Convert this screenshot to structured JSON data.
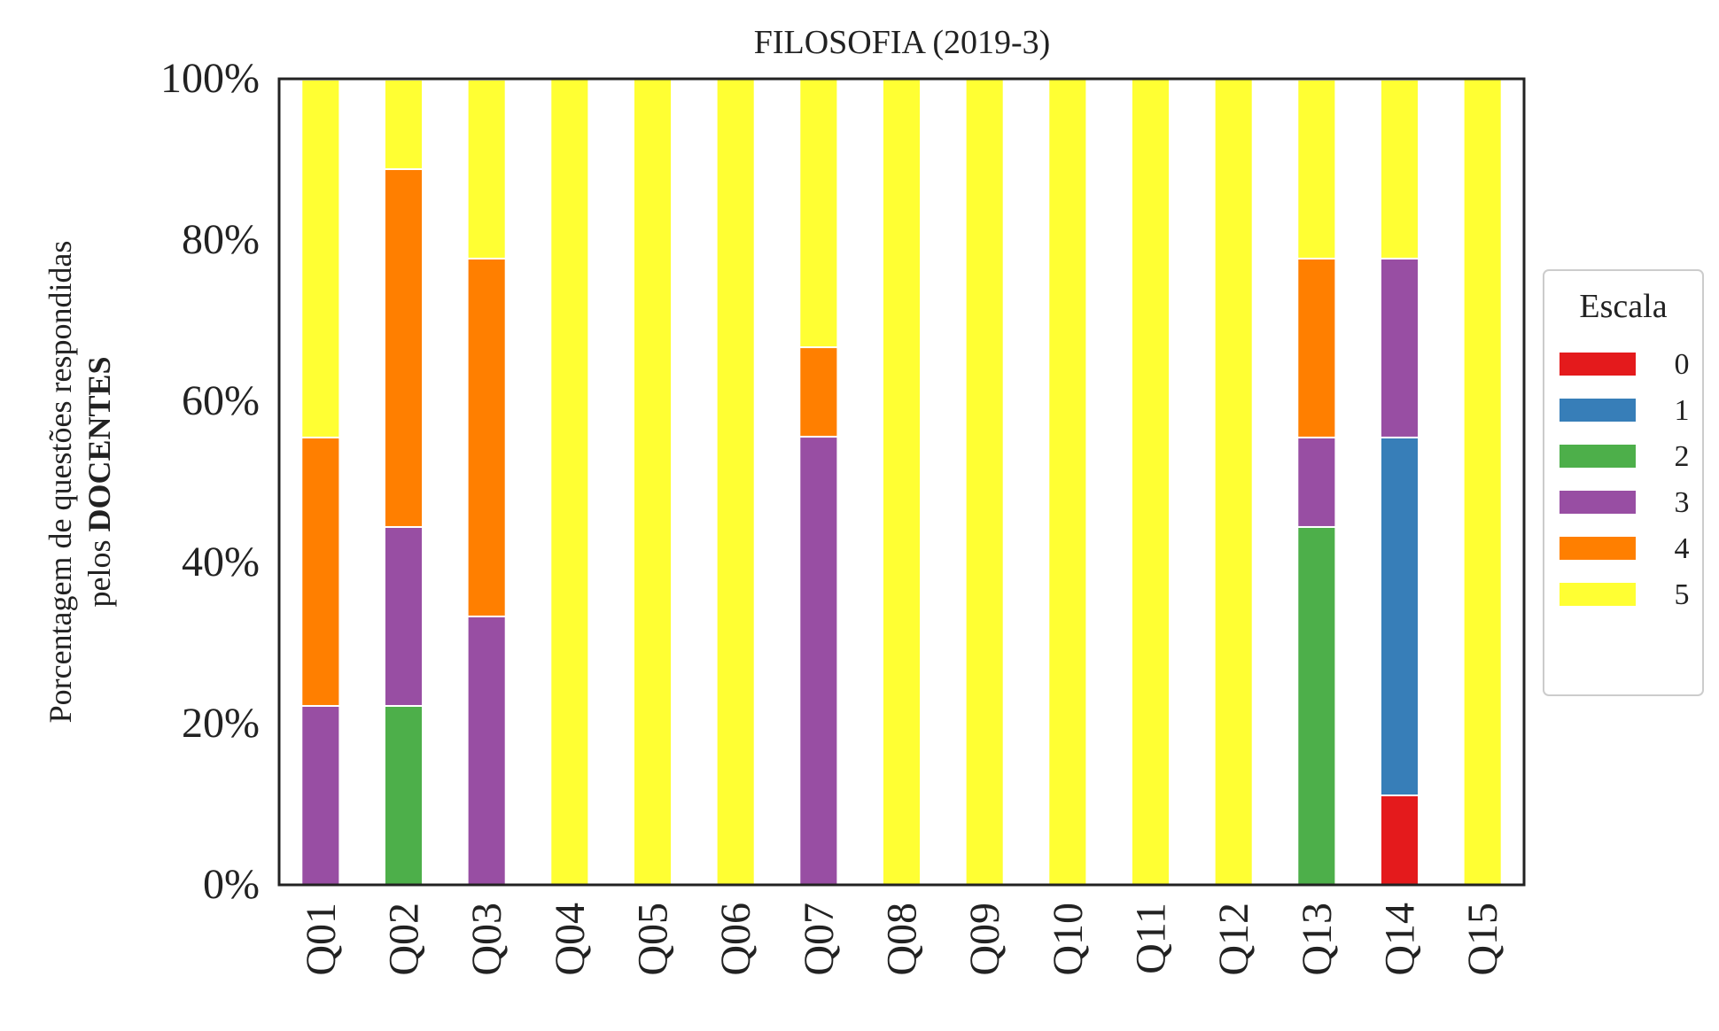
{
  "chart_data": {
    "type": "bar",
    "stacked": true,
    "title": "FILOSOFIA (2019-3)",
    "ylabel_line1": "Porcentagem de questões respondidas",
    "ylabel_line2_prefix": "pelos ",
    "ylabel_line2_bold": "DOCENTES",
    "ylim": [
      0,
      100
    ],
    "yticks": [
      0,
      20,
      40,
      60,
      80,
      100
    ],
    "ytick_labels": [
      "0%",
      "20%",
      "40%",
      "60%",
      "80%",
      "100%"
    ],
    "categories": [
      "Q01",
      "Q02",
      "Q03",
      "Q04",
      "Q05",
      "Q06",
      "Q07",
      "Q08",
      "Q09",
      "Q10",
      "Q11",
      "Q12",
      "Q13",
      "Q14",
      "Q15"
    ],
    "legend_title": "Escala",
    "legend_position": "right",
    "grid": false,
    "series": [
      {
        "name": "0",
        "color": "#e41a1c",
        "values": [
          0,
          0,
          0,
          0,
          0,
          0,
          0,
          0,
          0,
          0,
          0,
          0,
          0,
          11.1,
          0
        ]
      },
      {
        "name": "1",
        "color": "#377eb8",
        "values": [
          0,
          0,
          0,
          0,
          0,
          0,
          0,
          0,
          0,
          0,
          0,
          0,
          0,
          44.4,
          0
        ]
      },
      {
        "name": "2",
        "color": "#4daf4a",
        "values": [
          0,
          22.2,
          0,
          0,
          0,
          0,
          0,
          0,
          0,
          0,
          0,
          0,
          44.4,
          0,
          0
        ]
      },
      {
        "name": "3",
        "color": "#984ea3",
        "values": [
          22.2,
          22.2,
          33.3,
          0,
          0,
          0,
          55.6,
          0,
          0,
          0,
          0,
          0,
          11.1,
          22.2,
          0
        ]
      },
      {
        "name": "4",
        "color": "#ff7f00",
        "values": [
          33.3,
          44.4,
          44.4,
          0,
          0,
          0,
          11.1,
          0,
          0,
          0,
          0,
          0,
          22.2,
          0,
          0
        ]
      },
      {
        "name": "5",
        "color": "#ffff33",
        "values": [
          44.4,
          11.1,
          22.2,
          100,
          100,
          100,
          33.3,
          100,
          100,
          100,
          100,
          100,
          22.2,
          22.2,
          100
        ]
      }
    ]
  }
}
